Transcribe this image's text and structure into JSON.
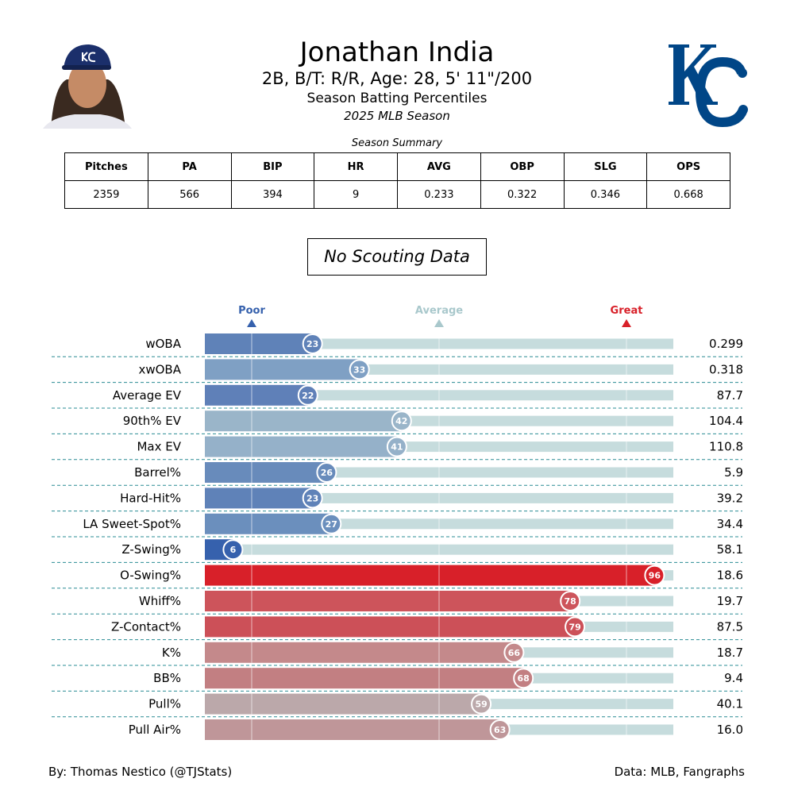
{
  "header": {
    "name": "Jonathan India",
    "bio": "2B, B/T: R/R, Age: 28, 5' 11\"/200",
    "subtitle": "Season Batting Percentiles",
    "season": "2025 MLB Season"
  },
  "team_logo": {
    "text": "KC",
    "color": "#004687"
  },
  "summary": {
    "title": "Season Summary",
    "headers": [
      "Pitches",
      "PA",
      "BIP",
      "HR",
      "AVG",
      "OBP",
      "SLG",
      "OPS"
    ],
    "values": [
      "2359",
      "566",
      "394",
      "9",
      "0.233",
      "0.322",
      "0.346",
      "0.668"
    ]
  },
  "scouting": "No Scouting Data",
  "chart_data": {
    "type": "bar",
    "orientation": "horizontal",
    "xlim": [
      0,
      100
    ],
    "reference_markers": [
      {
        "label": "Poor",
        "value": 10,
        "color": "#3661ad"
      },
      {
        "label": "Average",
        "value": 50,
        "color": "#a9c8cc"
      },
      {
        "label": "Great",
        "value": 90,
        "color": "#d82029"
      }
    ],
    "track_color": "#c6dcdd",
    "rows": [
      {
        "label": "wOBA",
        "percentile": 23,
        "value": "0.299",
        "color": "#5f82b8"
      },
      {
        "label": "xwOBA",
        "percentile": 33,
        "value": "0.318",
        "color": "#7fa0c4"
      },
      {
        "label": "Average EV",
        "percentile": 22,
        "value": "87.7",
        "color": "#5f80b8"
      },
      {
        "label": "90th% EV",
        "percentile": 42,
        "value": "104.4",
        "color": "#9ab5c9"
      },
      {
        "label": "Max EV",
        "percentile": 41,
        "value": "110.8",
        "color": "#95b1c9"
      },
      {
        "label": "Barrel%",
        "percentile": 26,
        "value": "5.9",
        "color": "#688bbb"
      },
      {
        "label": "Hard-Hit%",
        "percentile": 23,
        "value": "39.2",
        "color": "#5f82b8"
      },
      {
        "label": "LA Sweet-Spot%",
        "percentile": 27,
        "value": "34.4",
        "color": "#6b8fbd"
      },
      {
        "label": "Z-Swing%",
        "percentile": 6,
        "value": "58.1",
        "color": "#3661ad"
      },
      {
        "label": "O-Swing%",
        "percentile": 96,
        "value": "18.6",
        "color": "#d82029"
      },
      {
        "label": "Whiff%",
        "percentile": 78,
        "value": "19.7",
        "color": "#cd545b"
      },
      {
        "label": "Z-Contact%",
        "percentile": 79,
        "value": "87.5",
        "color": "#cc5058"
      },
      {
        "label": "K%",
        "percentile": 66,
        "value": "18.7",
        "color": "#c4898b"
      },
      {
        "label": "BB%",
        "percentile": 68,
        "value": "9.4",
        "color": "#c27f82"
      },
      {
        "label": "Pull%",
        "percentile": 59,
        "value": "40.1",
        "color": "#bba8aa"
      },
      {
        "label": "Pull Air%",
        "percentile": 63,
        "value": "16.0",
        "color": "#bf9699"
      }
    ]
  },
  "footer": {
    "left": "By: Thomas Nestico (@TJStats)",
    "right": "Data: MLB, Fangraphs"
  }
}
